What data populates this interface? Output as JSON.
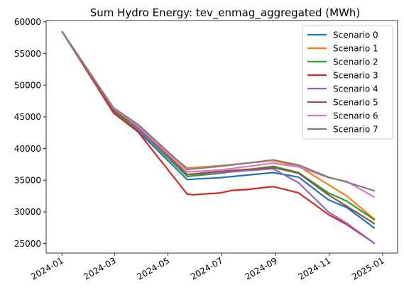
{
  "chart_data": {
    "type": "line",
    "title": "Sum Hydro Energy: tev_enmag_aggregated (MWh)",
    "xlabel": "",
    "ylabel": "",
    "xlim": [
      "2023-12-14",
      "2025-01-18"
    ],
    "ylim": [
      23500,
      60200
    ],
    "x_ticks": [
      "2024-01-01",
      "2024-03-01",
      "2024-05-01",
      "2024-07-01",
      "2024-09-01",
      "2024-11-01",
      "2025-01-01"
    ],
    "x_tick_labels": [
      "2024-01",
      "2024-03",
      "2024-05",
      "2024-07",
      "2024-09",
      "2024-11",
      "2025-01"
    ],
    "y_ticks": [
      25000,
      30000,
      35000,
      40000,
      45000,
      50000,
      55000,
      60000
    ],
    "y_tick_labels": [
      "25000",
      "30000",
      "35000",
      "40000",
      "45000",
      "50000",
      "55000",
      "60000"
    ],
    "grid": false,
    "legend_position": "upper right",
    "series": [
      {
        "name": "Scenario 0",
        "color": "#1f77b4",
        "x": [
          "2024-01-01",
          "2024-02-29",
          "2024-03-28",
          "2024-05-23",
          "2024-06-30",
          "2024-08-29",
          "2024-09-27",
          "2024-10-31",
          "2024-11-21",
          "2024-12-23"
        ],
        "y": [
          58500,
          45900,
          42700,
          35100,
          35400,
          36200,
          35500,
          31900,
          30700,
          27400
        ]
      },
      {
        "name": "Scenario 1",
        "color": "#ff7f0e",
        "x": [
          "2024-01-01",
          "2024-02-29",
          "2024-03-28",
          "2024-05-23",
          "2024-06-30",
          "2024-08-29",
          "2024-09-27",
          "2024-10-31",
          "2024-11-21",
          "2024-12-23"
        ],
        "y": [
          58500,
          45900,
          43200,
          36900,
          37300,
          38100,
          37200,
          34300,
          32500,
          28800
        ]
      },
      {
        "name": "Scenario 2",
        "color": "#2ca02c",
        "x": [
          "2024-01-01",
          "2024-02-29",
          "2024-03-28",
          "2024-05-23",
          "2024-06-30",
          "2024-08-29",
          "2024-09-27",
          "2024-10-31",
          "2024-11-21",
          "2024-12-23"
        ],
        "y": [
          58500,
          45800,
          43000,
          35600,
          36100,
          37200,
          36200,
          33000,
          31700,
          28700
        ]
      },
      {
        "name": "Scenario 3",
        "color": "#d62728",
        "x": [
          "2024-01-01",
          "2024-02-29",
          "2024-03-28",
          "2024-05-23",
          "2024-05-30",
          "2024-06-30",
          "2024-07-14",
          "2024-07-28",
          "2024-08-29",
          "2024-09-27",
          "2024-10-31",
          "2024-11-21",
          "2024-12-23"
        ],
        "y": [
          58500,
          45600,
          42600,
          32800,
          32700,
          33000,
          33400,
          33500,
          34000,
          33000,
          29600,
          28000,
          25000
        ]
      },
      {
        "name": "Scenario 4",
        "color": "#9467bd",
        "x": [
          "2024-01-01",
          "2024-02-29",
          "2024-03-28",
          "2024-05-23",
          "2024-06-30",
          "2024-08-29",
          "2024-09-27",
          "2024-10-31",
          "2024-11-21",
          "2024-12-23"
        ],
        "y": [
          58500,
          46200,
          43100,
          35900,
          36200,
          36800,
          34600,
          30000,
          28200,
          25000
        ]
      },
      {
        "name": "Scenario 5",
        "color": "#8c564b",
        "x": [
          "2024-01-01",
          "2024-02-29",
          "2024-03-28",
          "2024-05-23",
          "2024-06-30",
          "2024-08-29",
          "2024-09-27",
          "2024-10-31",
          "2024-11-21",
          "2024-12-23"
        ],
        "y": [
          58500,
          46000,
          43400,
          35900,
          36400,
          37000,
          36100,
          32700,
          30900,
          28100
        ]
      },
      {
        "name": "Scenario 6",
        "color": "#e377c2",
        "x": [
          "2024-01-01",
          "2024-02-29",
          "2024-03-28",
          "2024-05-23",
          "2024-06-30",
          "2024-08-29",
          "2024-09-27",
          "2024-10-31",
          "2024-11-21",
          "2024-12-23"
        ],
        "y": [
          58500,
          46300,
          43500,
          36300,
          36600,
          37700,
          37100,
          35400,
          34800,
          32300
        ]
      },
      {
        "name": "Scenario 7",
        "color": "#7f7f7f",
        "x": [
          "2024-01-01",
          "2024-02-29",
          "2024-03-28",
          "2024-05-23",
          "2024-06-30",
          "2024-08-29",
          "2024-09-27",
          "2024-10-31",
          "2024-11-21",
          "2024-12-23"
        ],
        "y": [
          58500,
          46400,
          43800,
          36700,
          37200,
          38200,
          37400,
          35500,
          34700,
          33300
        ]
      }
    ]
  }
}
